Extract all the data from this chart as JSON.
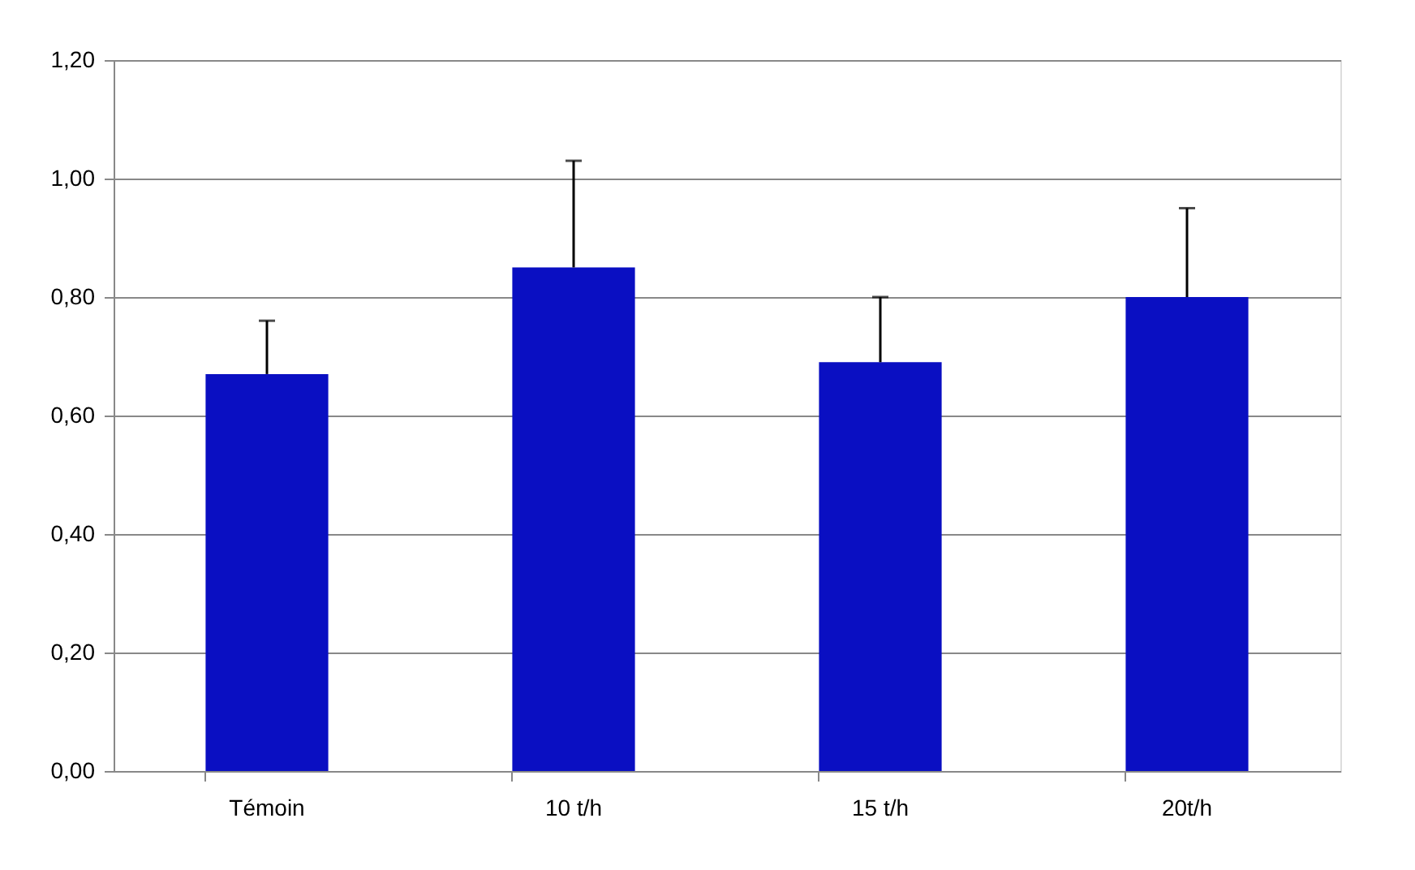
{
  "chart_data": {
    "type": "bar",
    "categories": [
      "Témoin",
      "10 t/h",
      "15 t/h",
      "20t/h"
    ],
    "values": [
      0.67,
      0.85,
      0.69,
      0.8
    ],
    "errors": [
      [
        0.67,
        0.76
      ],
      [
        0.85,
        1.03
      ],
      [
        0.69,
        0.8
      ],
      [
        0.8,
        0.95
      ]
    ],
    "color": "#0a0fc2",
    "ylim": [
      0,
      1.2
    ],
    "yticks": [
      {
        "value": 0,
        "label": "0,00"
      },
      {
        "value": 0.2,
        "label": "0,20"
      },
      {
        "value": 0.4,
        "label": "0,40"
      },
      {
        "value": 0.6,
        "label": "0,60"
      },
      {
        "value": 0.8,
        "label": "0,80"
      },
      {
        "value": 1.0,
        "label": "1,00"
      },
      {
        "value": 1.2,
        "label": "1,20"
      }
    ],
    "grid": "y"
  }
}
